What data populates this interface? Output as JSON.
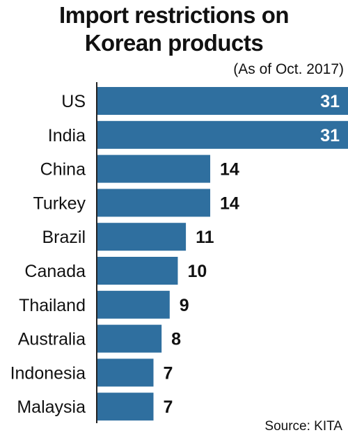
{
  "chart_data": {
    "type": "bar",
    "orientation": "horizontal",
    "title_line1": "Import restrictions on",
    "title_line2": "Korean products",
    "subtitle": "(As of Oct. 2017)",
    "source": "Source: KITA",
    "categories": [
      "US",
      "India",
      "China",
      "Turkey",
      "Brazil",
      "Canada",
      "Thailand",
      "Australia",
      "Indonesia",
      "Malaysia"
    ],
    "values": [
      31,
      31,
      14,
      14,
      11,
      10,
      9,
      8,
      7,
      7
    ],
    "data_labels": [
      "31",
      "31",
      "14",
      "14",
      "11",
      "10",
      "9",
      "8",
      "7",
      "7"
    ],
    "xlim": [
      0,
      31
    ],
    "grid": false,
    "legend": "none",
    "colors": {
      "bar": "#2f6f9f",
      "axis": "#222222",
      "label_inside": "#ffffff",
      "label_outside": "#111111"
    }
  }
}
